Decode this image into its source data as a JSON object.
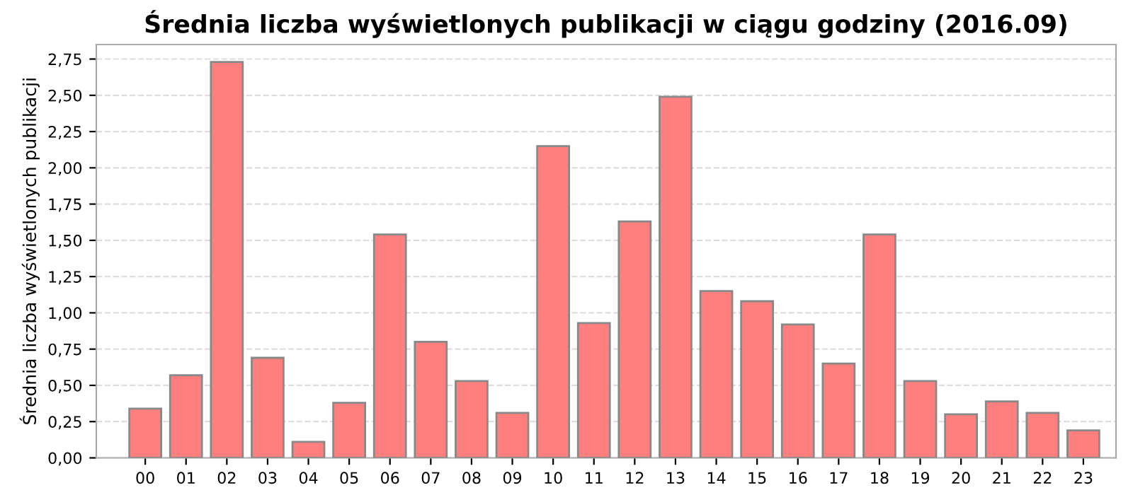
{
  "chart_data": {
    "type": "bar",
    "title": "Średnia liczba wyświetlonych publikacji w ciągu godziny (2016.09)",
    "ylabel": "Średnia liczba wyświetlonych publikacji",
    "categories": [
      "00",
      "01",
      "02",
      "03",
      "04",
      "05",
      "06",
      "07",
      "08",
      "09",
      "10",
      "11",
      "12",
      "13",
      "14",
      "15",
      "16",
      "17",
      "18",
      "19",
      "20",
      "21",
      "22",
      "23"
    ],
    "values": [
      0.34,
      0.57,
      2.73,
      0.69,
      0.11,
      0.38,
      1.54,
      0.8,
      0.53,
      0.31,
      2.15,
      0.93,
      1.63,
      2.49,
      1.15,
      1.08,
      0.92,
      0.65,
      1.54,
      0.53,
      0.3,
      0.39,
      0.31,
      0.19
    ],
    "color": "#ff7f7f",
    "ylim": [
      0,
      2.85
    ],
    "yticks": [
      {
        "value": 0,
        "label": "0,00"
      },
      {
        "value": 0.25,
        "label": "0,25"
      },
      {
        "value": 0.5,
        "label": "0,50"
      },
      {
        "value": 0.75,
        "label": "0,75"
      },
      {
        "value": 1,
        "label": "1,00"
      },
      {
        "value": 1.25,
        "label": "1,25"
      },
      {
        "value": 1.5,
        "label": "1,50"
      },
      {
        "value": 1.75,
        "label": "1,75"
      },
      {
        "value": 2,
        "label": "2,00"
      },
      {
        "value": 2.25,
        "label": "2,25"
      },
      {
        "value": 2.5,
        "label": "2,50"
      },
      {
        "value": 2.75,
        "label": "2,75"
      }
    ],
    "grid": "y",
    "line_style": "dashed"
  }
}
